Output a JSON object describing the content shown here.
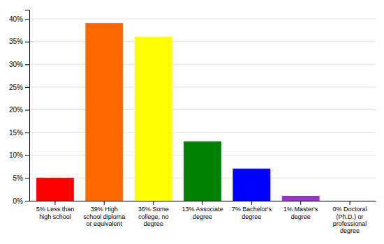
{
  "chart_data": {
    "type": "bar",
    "categories": [
      "5% Less than\nhigh school",
      "39% High\nschool diploma\nor equivalent",
      "36% Some\ncollege, no\ndegree",
      "13% Associate\ndegree",
      "7% Bachelor's\ndegree",
      "1% Master's\ndegree",
      "0% Doctoral\n(Ph.D.) or\nprofessional\ndegree"
    ],
    "values": [
      5,
      39,
      36,
      13,
      7,
      1,
      0
    ],
    "colors": [
      "#ff0000",
      "#ff6600",
      "#ffff00",
      "#008000",
      "#0000ff",
      "#9933cc",
      "#ff00ff"
    ],
    "ylim": [
      0,
      42
    ],
    "yticks": [
      {
        "value": 0,
        "label": "0%"
      },
      {
        "value": 5,
        "label": "5%"
      },
      {
        "value": 10,
        "label": "10%"
      },
      {
        "value": 15,
        "label": "15%"
      },
      {
        "value": 20,
        "label": "20%"
      },
      {
        "value": 25,
        "label": "25%"
      },
      {
        "value": 30,
        "label": "30%"
      },
      {
        "value": 35,
        "label": "35%"
      },
      {
        "value": 40,
        "label": "40%"
      }
    ],
    "grid": true
  }
}
